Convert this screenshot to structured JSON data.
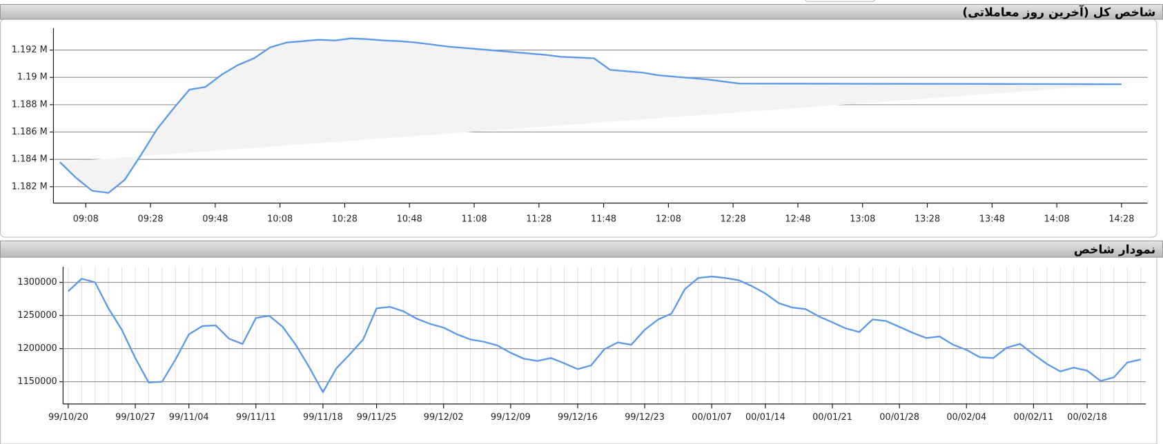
{
  "chart_data": [
    {
      "type": "line",
      "title": "شاخص کل (آخرین روز معاملاتی)",
      "x": [
        "09:00",
        "09:05",
        "09:10",
        "09:15",
        "09:20",
        "09:25",
        "09:30",
        "09:35",
        "09:40",
        "09:45",
        "09:50",
        "09:55",
        "10:00",
        "10:05",
        "10:10",
        "10:15",
        "10:20",
        "10:25",
        "10:30",
        "10:35",
        "10:40",
        "10:45",
        "10:50",
        "10:55",
        "11:00",
        "11:05",
        "11:10",
        "11:15",
        "11:20",
        "11:25",
        "11:30",
        "11:35",
        "11:40",
        "11:45",
        "11:50",
        "11:55",
        "12:00",
        "12:05",
        "12:10",
        "12:15",
        "12:20",
        "12:25",
        "12:30",
        "14:28"
      ],
      "values": [
        1183800,
        1182650,
        1181700,
        1181550,
        1182500,
        1184300,
        1186200,
        1187700,
        1189100,
        1189300,
        1190200,
        1190900,
        1191400,
        1192200,
        1192550,
        1192650,
        1192750,
        1192700,
        1192850,
        1192800,
        1192700,
        1192650,
        1192550,
        1192400,
        1192250,
        1192150,
        1192050,
        1191950,
        1191850,
        1191750,
        1191650,
        1191500,
        1191450,
        1191400,
        1190550,
        1190450,
        1190350,
        1190150,
        1190050,
        1189950,
        1189850,
        1189700,
        1189550,
        1189500
      ],
      "color": "#5b9ae8",
      "area": true,
      "area_color": "#f3f3f3",
      "xlim": [
        "08:58",
        "14:36"
      ],
      "xticks": [
        "09:08",
        "09:28",
        "09:48",
        "10:08",
        "10:28",
        "10:48",
        "11:08",
        "11:28",
        "11:48",
        "12:08",
        "12:28",
        "12:48",
        "13:08",
        "13:28",
        "13:48",
        "14:08",
        "14:28"
      ],
      "ylim": [
        1180800,
        1193600
      ],
      "yticks": [
        {
          "value": 1182000,
          "label": "1.182 M"
        },
        {
          "value": 1184000,
          "label": "1.184 M"
        },
        {
          "value": 1186000,
          "label": "1.186 M"
        },
        {
          "value": 1188000,
          "label": "1.188 M"
        },
        {
          "value": 1190000,
          "label": "1.19 M"
        },
        {
          "value": 1192000,
          "label": "1.192 M"
        }
      ],
      "grid": true
    },
    {
      "type": "line",
      "title": "نمودار شاخص",
      "categories": [
        "99/10/20",
        null,
        null,
        null,
        null,
        "99/10/27",
        null,
        null,
        null,
        "99/11/04",
        null,
        null,
        null,
        null,
        "99/11/11",
        null,
        null,
        null,
        null,
        "99/11/18",
        null,
        null,
        null,
        "99/11/25",
        null,
        null,
        null,
        null,
        "99/12/02",
        null,
        null,
        null,
        null,
        "99/12/09",
        null,
        null,
        null,
        null,
        "99/12/16",
        null,
        null,
        null,
        null,
        "99/12/23",
        null,
        null,
        null,
        null,
        "00/01/07",
        null,
        null,
        null,
        "00/01/14",
        null,
        null,
        null,
        null,
        "00/01/21",
        null,
        null,
        null,
        null,
        "00/01/28",
        null,
        null,
        null,
        null,
        "00/02/04",
        null,
        null,
        null,
        null,
        "00/02/11",
        null,
        null,
        null,
        "00/02/18",
        null,
        null,
        null,
        null
      ],
      "values": [
        1286600,
        1305600,
        1300000,
        1260800,
        1228400,
        1185800,
        1148900,
        1150000,
        1183600,
        1221600,
        1234000,
        1235100,
        1214900,
        1207100,
        1246300,
        1249600,
        1232800,
        1204800,
        1171300,
        1134300,
        1170100,
        1191400,
        1213800,
        1260800,
        1263000,
        1256300,
        1245100,
        1237300,
        1231700,
        1221600,
        1213800,
        1210400,
        1204800,
        1193600,
        1184700,
        1181300,
        1185800,
        1177900,
        1169000,
        1174600,
        1199200,
        1209300,
        1205900,
        1228400,
        1244000,
        1253000,
        1289900,
        1306700,
        1309000,
        1306700,
        1303400,
        1294400,
        1283200,
        1268700,
        1262000,
        1259700,
        1248500,
        1239600,
        1230600,
        1225000,
        1244000,
        1241800,
        1232800,
        1223900,
        1216000,
        1218300,
        1205900,
        1198100,
        1186900,
        1185800,
        1201500,
        1207100,
        1191400,
        1176800,
        1165600,
        1171300,
        1166800,
        1151100,
        1156700,
        1179100,
        1183600
      ],
      "color": "#5b9ae8",
      "ylim": [
        1116400,
        1323500
      ],
      "yticks": [
        1150000,
        1200000,
        1250000,
        1300000
      ],
      "grid": true
    }
  ]
}
